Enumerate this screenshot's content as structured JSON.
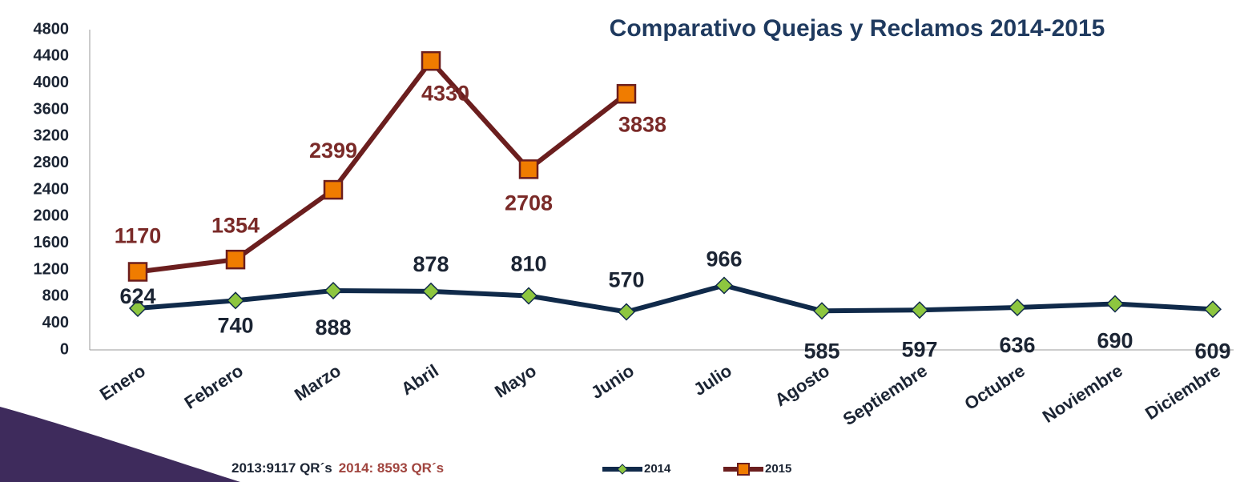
{
  "chart_data": {
    "type": "line",
    "title": "Comparativo Quejas y Reclamos 2014-2015",
    "categories": [
      "Enero",
      "Febrero",
      "Marzo",
      "Abril",
      "Mayo",
      "Junio",
      "Julio",
      "Agosto",
      "Septiembre",
      "Octubre",
      "Noviembre",
      "Diciembre"
    ],
    "series": [
      {
        "name": "2014",
        "color": "#102a4a",
        "marker_color": "#8dc63f",
        "marker": "diamond",
        "label_color": "#1b2433",
        "values": [
          624,
          740,
          888,
          878,
          810,
          570,
          966,
          585,
          597,
          636,
          690,
          609
        ]
      },
      {
        "name": "2015",
        "color": "#6b1e1e",
        "marker_color": "#f07c00",
        "marker": "square",
        "label_color": "#7a2a28",
        "values": [
          1170,
          1354,
          2399,
          4330,
          2708,
          3838,
          null,
          null,
          null,
          null,
          null,
          null
        ]
      }
    ],
    "ylim": [
      0,
      4800
    ],
    "yticks": [
      0,
      400,
      800,
      1200,
      1600,
      2000,
      2400,
      2800,
      3200,
      3600,
      4000,
      4400,
      4800
    ],
    "grid": false,
    "legend": "bottom",
    "annotations": [
      {
        "text": "2013:9117 QR´s",
        "color": "#1b2433"
      },
      {
        "text": "2014: 8593 QR´s",
        "color": "#a0443e"
      }
    ]
  }
}
